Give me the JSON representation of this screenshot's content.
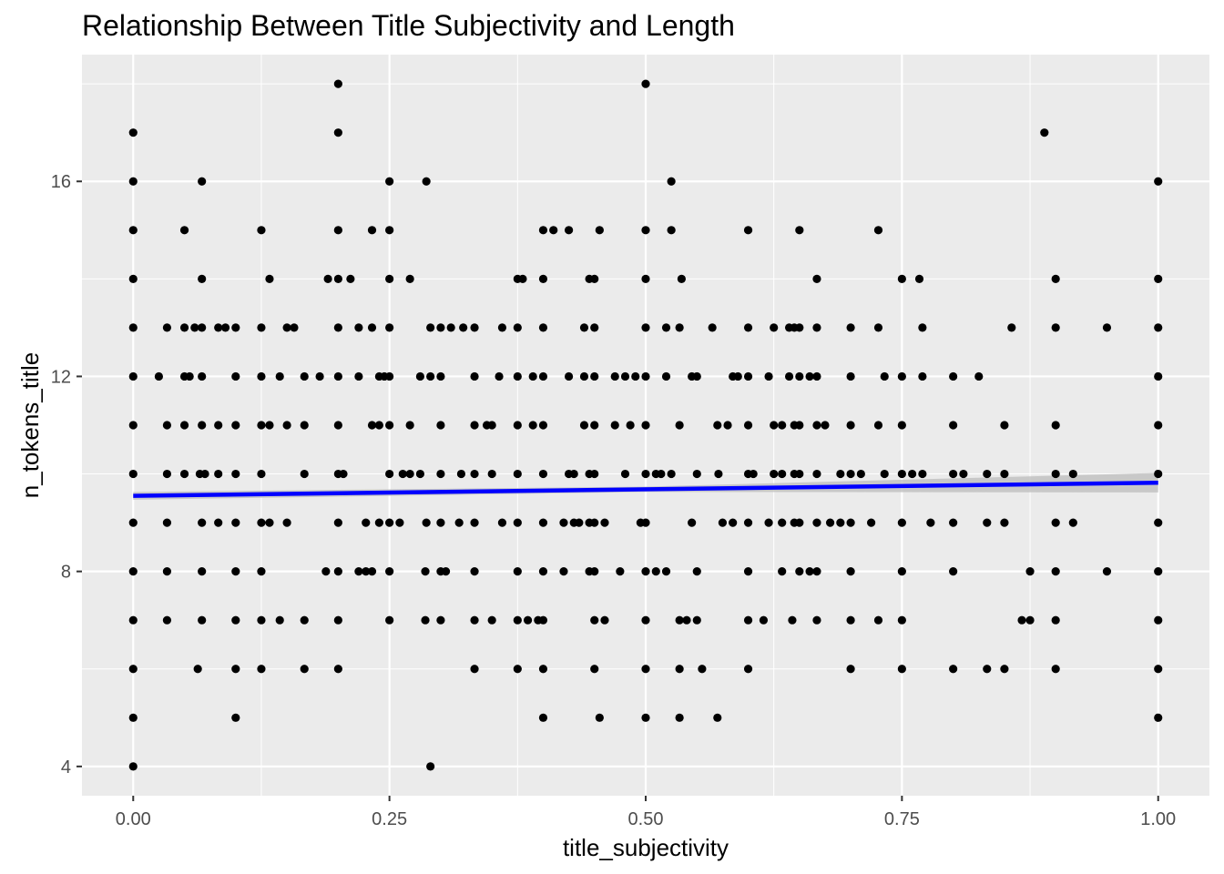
{
  "chart_data": {
    "type": "scatter",
    "title": "Relationship Between Title Subjectivity and Length",
    "xlabel": "title_subjectivity",
    "ylabel": "n_tokens_title",
    "xlim": [
      -0.05,
      1.05
    ],
    "ylim": [
      3.4,
      18.6
    ],
    "xticks": [
      0.0,
      0.25,
      0.5,
      0.75,
      1.0
    ],
    "xtick_labels": [
      "0.00",
      "0.25",
      "0.50",
      "0.75",
      "1.00"
    ],
    "yticks": [
      4,
      8,
      12,
      16
    ],
    "ytick_labels": [
      "4",
      "8",
      "12",
      "16"
    ],
    "grid": true,
    "legend": "none",
    "colors": {
      "panel": "#ebebeb",
      "grid": "#ffffff",
      "points": "#000000",
      "trend": "#0000ff",
      "band": "#bfbfbf"
    },
    "trend_line": {
      "x": [
        0.0,
        1.0
      ],
      "y": [
        9.55,
        9.82
      ]
    },
    "confidence_band": {
      "x": [
        0.0,
        0.5,
        1.0
      ],
      "lower": [
        9.47,
        9.63,
        9.62
      ],
      "upper": [
        9.63,
        9.74,
        10.02
      ]
    },
    "points": [
      [
        0,
        4
      ],
      [
        0,
        5
      ],
      [
        0,
        6
      ],
      [
        0,
        7
      ],
      [
        0,
        8
      ],
      [
        0,
        9
      ],
      [
        0,
        10
      ],
      [
        0,
        11
      ],
      [
        0,
        12
      ],
      [
        0,
        13
      ],
      [
        0,
        14
      ],
      [
        0,
        15
      ],
      [
        0,
        16
      ],
      [
        0,
        17
      ],
      [
        0.025,
        12
      ],
      [
        0.033,
        7
      ],
      [
        0.033,
        8
      ],
      [
        0.033,
        9
      ],
      [
        0.033,
        10
      ],
      [
        0.033,
        11
      ],
      [
        0.033,
        13
      ],
      [
        0.05,
        10
      ],
      [
        0.05,
        11
      ],
      [
        0.05,
        12
      ],
      [
        0.05,
        13
      ],
      [
        0.05,
        15
      ],
      [
        0.055,
        12
      ],
      [
        0.06,
        13
      ],
      [
        0.063,
        6
      ],
      [
        0.065,
        10
      ],
      [
        0.067,
        7
      ],
      [
        0.067,
        8
      ],
      [
        0.067,
        9
      ],
      [
        0.067,
        11
      ],
      [
        0.067,
        12
      ],
      [
        0.067,
        13
      ],
      [
        0.067,
        14
      ],
      [
        0.067,
        16
      ],
      [
        0.07,
        10
      ],
      [
        0.083,
        9
      ],
      [
        0.083,
        11
      ],
      [
        0.083,
        13
      ],
      [
        0.083,
        10
      ],
      [
        0.09,
        13
      ],
      [
        0.1,
        5
      ],
      [
        0.1,
        6
      ],
      [
        0.1,
        7
      ],
      [
        0.1,
        8
      ],
      [
        0.1,
        9
      ],
      [
        0.1,
        10
      ],
      [
        0.1,
        11
      ],
      [
        0.1,
        12
      ],
      [
        0.1,
        13
      ],
      [
        0.125,
        6
      ],
      [
        0.125,
        7
      ],
      [
        0.125,
        8
      ],
      [
        0.125,
        9
      ],
      [
        0.125,
        10
      ],
      [
        0.125,
        11
      ],
      [
        0.125,
        12
      ],
      [
        0.125,
        13
      ],
      [
        0.125,
        15
      ],
      [
        0.133,
        9
      ],
      [
        0.133,
        11
      ],
      [
        0.133,
        14
      ],
      [
        0.143,
        7
      ],
      [
        0.143,
        12
      ],
      [
        0.15,
        9
      ],
      [
        0.15,
        11
      ],
      [
        0.15,
        13
      ],
      [
        0.157,
        13
      ],
      [
        0.167,
        6
      ],
      [
        0.167,
        7
      ],
      [
        0.167,
        10
      ],
      [
        0.167,
        11
      ],
      [
        0.167,
        12
      ],
      [
        0.182,
        12
      ],
      [
        0.188,
        8
      ],
      [
        0.19,
        14
      ],
      [
        0.2,
        6
      ],
      [
        0.2,
        7
      ],
      [
        0.2,
        8
      ],
      [
        0.2,
        9
      ],
      [
        0.2,
        10
      ],
      [
        0.2,
        11
      ],
      [
        0.2,
        12
      ],
      [
        0.2,
        13
      ],
      [
        0.2,
        14
      ],
      [
        0.2,
        15
      ],
      [
        0.2,
        17
      ],
      [
        0.2,
        18
      ],
      [
        0.205,
        10
      ],
      [
        0.212,
        14
      ],
      [
        0.22,
        8
      ],
      [
        0.22,
        12
      ],
      [
        0.22,
        13
      ],
      [
        0.227,
        8
      ],
      [
        0.227,
        9
      ],
      [
        0.233,
        8
      ],
      [
        0.233,
        11
      ],
      [
        0.233,
        13
      ],
      [
        0.233,
        15
      ],
      [
        0.24,
        9
      ],
      [
        0.24,
        11
      ],
      [
        0.24,
        12
      ],
      [
        0.245,
        12
      ],
      [
        0.25,
        7
      ],
      [
        0.25,
        8
      ],
      [
        0.25,
        9
      ],
      [
        0.25,
        10
      ],
      [
        0.25,
        11
      ],
      [
        0.25,
        12
      ],
      [
        0.25,
        13
      ],
      [
        0.25,
        14
      ],
      [
        0.25,
        15
      ],
      [
        0.25,
        16
      ],
      [
        0.26,
        9
      ],
      [
        0.263,
        10
      ],
      [
        0.27,
        10
      ],
      [
        0.27,
        11
      ],
      [
        0.27,
        14
      ],
      [
        0.28,
        10
      ],
      [
        0.28,
        12
      ],
      [
        0.285,
        7
      ],
      [
        0.285,
        8
      ],
      [
        0.286,
        9
      ],
      [
        0.286,
        16
      ],
      [
        0.29,
        4
      ],
      [
        0.29,
        12
      ],
      [
        0.29,
        13
      ],
      [
        0.3,
        7
      ],
      [
        0.3,
        8
      ],
      [
        0.3,
        9
      ],
      [
        0.3,
        10
      ],
      [
        0.3,
        11
      ],
      [
        0.3,
        12
      ],
      [
        0.3,
        13
      ],
      [
        0.305,
        8
      ],
      [
        0.31,
        13
      ],
      [
        0.318,
        9
      ],
      [
        0.32,
        10
      ],
      [
        0.322,
        13
      ],
      [
        0.333,
        6
      ],
      [
        0.333,
        7
      ],
      [
        0.333,
        8
      ],
      [
        0.333,
        9
      ],
      [
        0.333,
        10
      ],
      [
        0.333,
        11
      ],
      [
        0.333,
        12
      ],
      [
        0.333,
        13
      ],
      [
        0.345,
        11
      ],
      [
        0.35,
        7
      ],
      [
        0.35,
        10
      ],
      [
        0.35,
        11
      ],
      [
        0.357,
        12
      ],
      [
        0.36,
        9
      ],
      [
        0.36,
        13
      ],
      [
        0.375,
        6
      ],
      [
        0.375,
        7
      ],
      [
        0.375,
        8
      ],
      [
        0.375,
        9
      ],
      [
        0.375,
        10
      ],
      [
        0.375,
        11
      ],
      [
        0.375,
        12
      ],
      [
        0.375,
        13
      ],
      [
        0.375,
        14
      ],
      [
        0.38,
        14
      ],
      [
        0.385,
        7
      ],
      [
        0.39,
        11
      ],
      [
        0.39,
        12
      ],
      [
        0.395,
        7
      ],
      [
        0.4,
        5
      ],
      [
        0.4,
        6
      ],
      [
        0.4,
        7
      ],
      [
        0.4,
        8
      ],
      [
        0.4,
        9
      ],
      [
        0.4,
        10
      ],
      [
        0.4,
        11
      ],
      [
        0.4,
        12
      ],
      [
        0.4,
        13
      ],
      [
        0.4,
        14
      ],
      [
        0.4,
        15
      ],
      [
        0.41,
        15
      ],
      [
        0.42,
        8
      ],
      [
        0.42,
        9
      ],
      [
        0.425,
        10
      ],
      [
        0.425,
        12
      ],
      [
        0.425,
        15
      ],
      [
        0.43,
        9
      ],
      [
        0.43,
        10
      ],
      [
        0.435,
        9
      ],
      [
        0.44,
        11
      ],
      [
        0.44,
        13
      ],
      [
        0.44,
        12
      ],
      [
        0.445,
        8
      ],
      [
        0.445,
        9
      ],
      [
        0.445,
        10
      ],
      [
        0.445,
        14
      ],
      [
        0.45,
        6
      ],
      [
        0.45,
        7
      ],
      [
        0.45,
        8
      ],
      [
        0.45,
        9
      ],
      [
        0.45,
        10
      ],
      [
        0.45,
        11
      ],
      [
        0.45,
        12
      ],
      [
        0.45,
        13
      ],
      [
        0.45,
        14
      ],
      [
        0.455,
        5
      ],
      [
        0.455,
        15
      ],
      [
        0.46,
        7
      ],
      [
        0.46,
        9
      ],
      [
        0.47,
        11
      ],
      [
        0.47,
        12
      ],
      [
        0.475,
        8
      ],
      [
        0.48,
        10
      ],
      [
        0.48,
        12
      ],
      [
        0.485,
        11
      ],
      [
        0.49,
        12
      ],
      [
        0.495,
        9
      ],
      [
        0.5,
        5
      ],
      [
        0.5,
        6
      ],
      [
        0.5,
        7
      ],
      [
        0.5,
        8
      ],
      [
        0.5,
        9
      ],
      [
        0.5,
        10
      ],
      [
        0.5,
        11
      ],
      [
        0.5,
        12
      ],
      [
        0.5,
        13
      ],
      [
        0.5,
        14
      ],
      [
        0.5,
        15
      ],
      [
        0.5,
        18
      ],
      [
        0.51,
        8
      ],
      [
        0.51,
        10
      ],
      [
        0.515,
        10
      ],
      [
        0.52,
        8
      ],
      [
        0.52,
        12
      ],
      [
        0.52,
        13
      ],
      [
        0.525,
        10
      ],
      [
        0.525,
        15
      ],
      [
        0.525,
        16
      ],
      [
        0.533,
        5
      ],
      [
        0.533,
        6
      ],
      [
        0.533,
        7
      ],
      [
        0.533,
        11
      ],
      [
        0.533,
        13
      ],
      [
        0.535,
        14
      ],
      [
        0.54,
        7
      ],
      [
        0.545,
        9
      ],
      [
        0.545,
        12
      ],
      [
        0.55,
        7
      ],
      [
        0.55,
        8
      ],
      [
        0.55,
        10
      ],
      [
        0.55,
        12
      ],
      [
        0.555,
        6
      ],
      [
        0.565,
        13
      ],
      [
        0.57,
        5
      ],
      [
        0.57,
        11
      ],
      [
        0.571,
        10
      ],
      [
        0.575,
        9
      ],
      [
        0.58,
        11
      ],
      [
        0.585,
        9
      ],
      [
        0.585,
        12
      ],
      [
        0.59,
        12
      ],
      [
        0.6,
        6
      ],
      [
        0.6,
        7
      ],
      [
        0.6,
        8
      ],
      [
        0.6,
        9
      ],
      [
        0.6,
        10
      ],
      [
        0.6,
        11
      ],
      [
        0.6,
        12
      ],
      [
        0.6,
        13
      ],
      [
        0.6,
        15
      ],
      [
        0.605,
        10
      ],
      [
        0.615,
        7
      ],
      [
        0.62,
        12
      ],
      [
        0.62,
        9
      ],
      [
        0.625,
        10
      ],
      [
        0.625,
        11
      ],
      [
        0.625,
        13
      ],
      [
        0.633,
        8
      ],
      [
        0.633,
        9
      ],
      [
        0.633,
        10
      ],
      [
        0.633,
        11
      ],
      [
        0.64,
        13
      ],
      [
        0.64,
        12
      ],
      [
        0.643,
        7
      ],
      [
        0.645,
        9
      ],
      [
        0.645,
        10
      ],
      [
        0.645,
        11
      ],
      [
        0.645,
        13
      ],
      [
        0.65,
        8
      ],
      [
        0.65,
        9
      ],
      [
        0.65,
        10
      ],
      [
        0.65,
        11
      ],
      [
        0.65,
        12
      ],
      [
        0.65,
        13
      ],
      [
        0.65,
        15
      ],
      [
        0.66,
        12
      ],
      [
        0.66,
        8
      ],
      [
        0.667,
        7
      ],
      [
        0.667,
        8
      ],
      [
        0.667,
        9
      ],
      [
        0.667,
        10
      ],
      [
        0.667,
        11
      ],
      [
        0.667,
        12
      ],
      [
        0.667,
        13
      ],
      [
        0.667,
        14
      ],
      [
        0.675,
        11
      ],
      [
        0.68,
        9
      ],
      [
        0.69,
        9
      ],
      [
        0.69,
        10
      ],
      [
        0.7,
        6
      ],
      [
        0.7,
        7
      ],
      [
        0.7,
        8
      ],
      [
        0.7,
        9
      ],
      [
        0.7,
        10
      ],
      [
        0.7,
        11
      ],
      [
        0.7,
        12
      ],
      [
        0.7,
        13
      ],
      [
        0.71,
        10
      ],
      [
        0.72,
        9
      ],
      [
        0.727,
        7
      ],
      [
        0.727,
        11
      ],
      [
        0.727,
        13
      ],
      [
        0.727,
        15
      ],
      [
        0.733,
        12
      ],
      [
        0.733,
        10
      ],
      [
        0.75,
        6
      ],
      [
        0.75,
        7
      ],
      [
        0.75,
        8
      ],
      [
        0.75,
        9
      ],
      [
        0.75,
        10
      ],
      [
        0.75,
        11
      ],
      [
        0.75,
        12
      ],
      [
        0.75,
        14
      ],
      [
        0.76,
        10
      ],
      [
        0.767,
        14
      ],
      [
        0.77,
        10
      ],
      [
        0.77,
        12
      ],
      [
        0.77,
        13
      ],
      [
        0.778,
        9
      ],
      [
        0.8,
        6
      ],
      [
        0.8,
        8
      ],
      [
        0.8,
        9
      ],
      [
        0.8,
        10
      ],
      [
        0.8,
        11
      ],
      [
        0.8,
        12
      ],
      [
        0.81,
        10
      ],
      [
        0.825,
        12
      ],
      [
        0.833,
        6
      ],
      [
        0.833,
        9
      ],
      [
        0.833,
        10
      ],
      [
        0.85,
        6
      ],
      [
        0.85,
        9
      ],
      [
        0.85,
        10
      ],
      [
        0.85,
        11
      ],
      [
        0.857,
        13
      ],
      [
        0.867,
        7
      ],
      [
        0.875,
        7
      ],
      [
        0.875,
        8
      ],
      [
        0.889,
        17
      ],
      [
        0.9,
        6
      ],
      [
        0.9,
        7
      ],
      [
        0.9,
        8
      ],
      [
        0.9,
        9
      ],
      [
        0.9,
        10
      ],
      [
        0.9,
        11
      ],
      [
        0.9,
        13
      ],
      [
        0.9,
        14
      ],
      [
        0.917,
        9
      ],
      [
        0.917,
        10
      ],
      [
        0.95,
        8
      ],
      [
        0.95,
        13
      ],
      [
        1,
        5
      ],
      [
        1,
        6
      ],
      [
        1,
        7
      ],
      [
        1,
        8
      ],
      [
        1,
        9
      ],
      [
        1,
        10
      ],
      [
        1,
        11
      ],
      [
        1,
        12
      ],
      [
        1,
        13
      ],
      [
        1,
        14
      ],
      [
        1,
        16
      ]
    ]
  }
}
